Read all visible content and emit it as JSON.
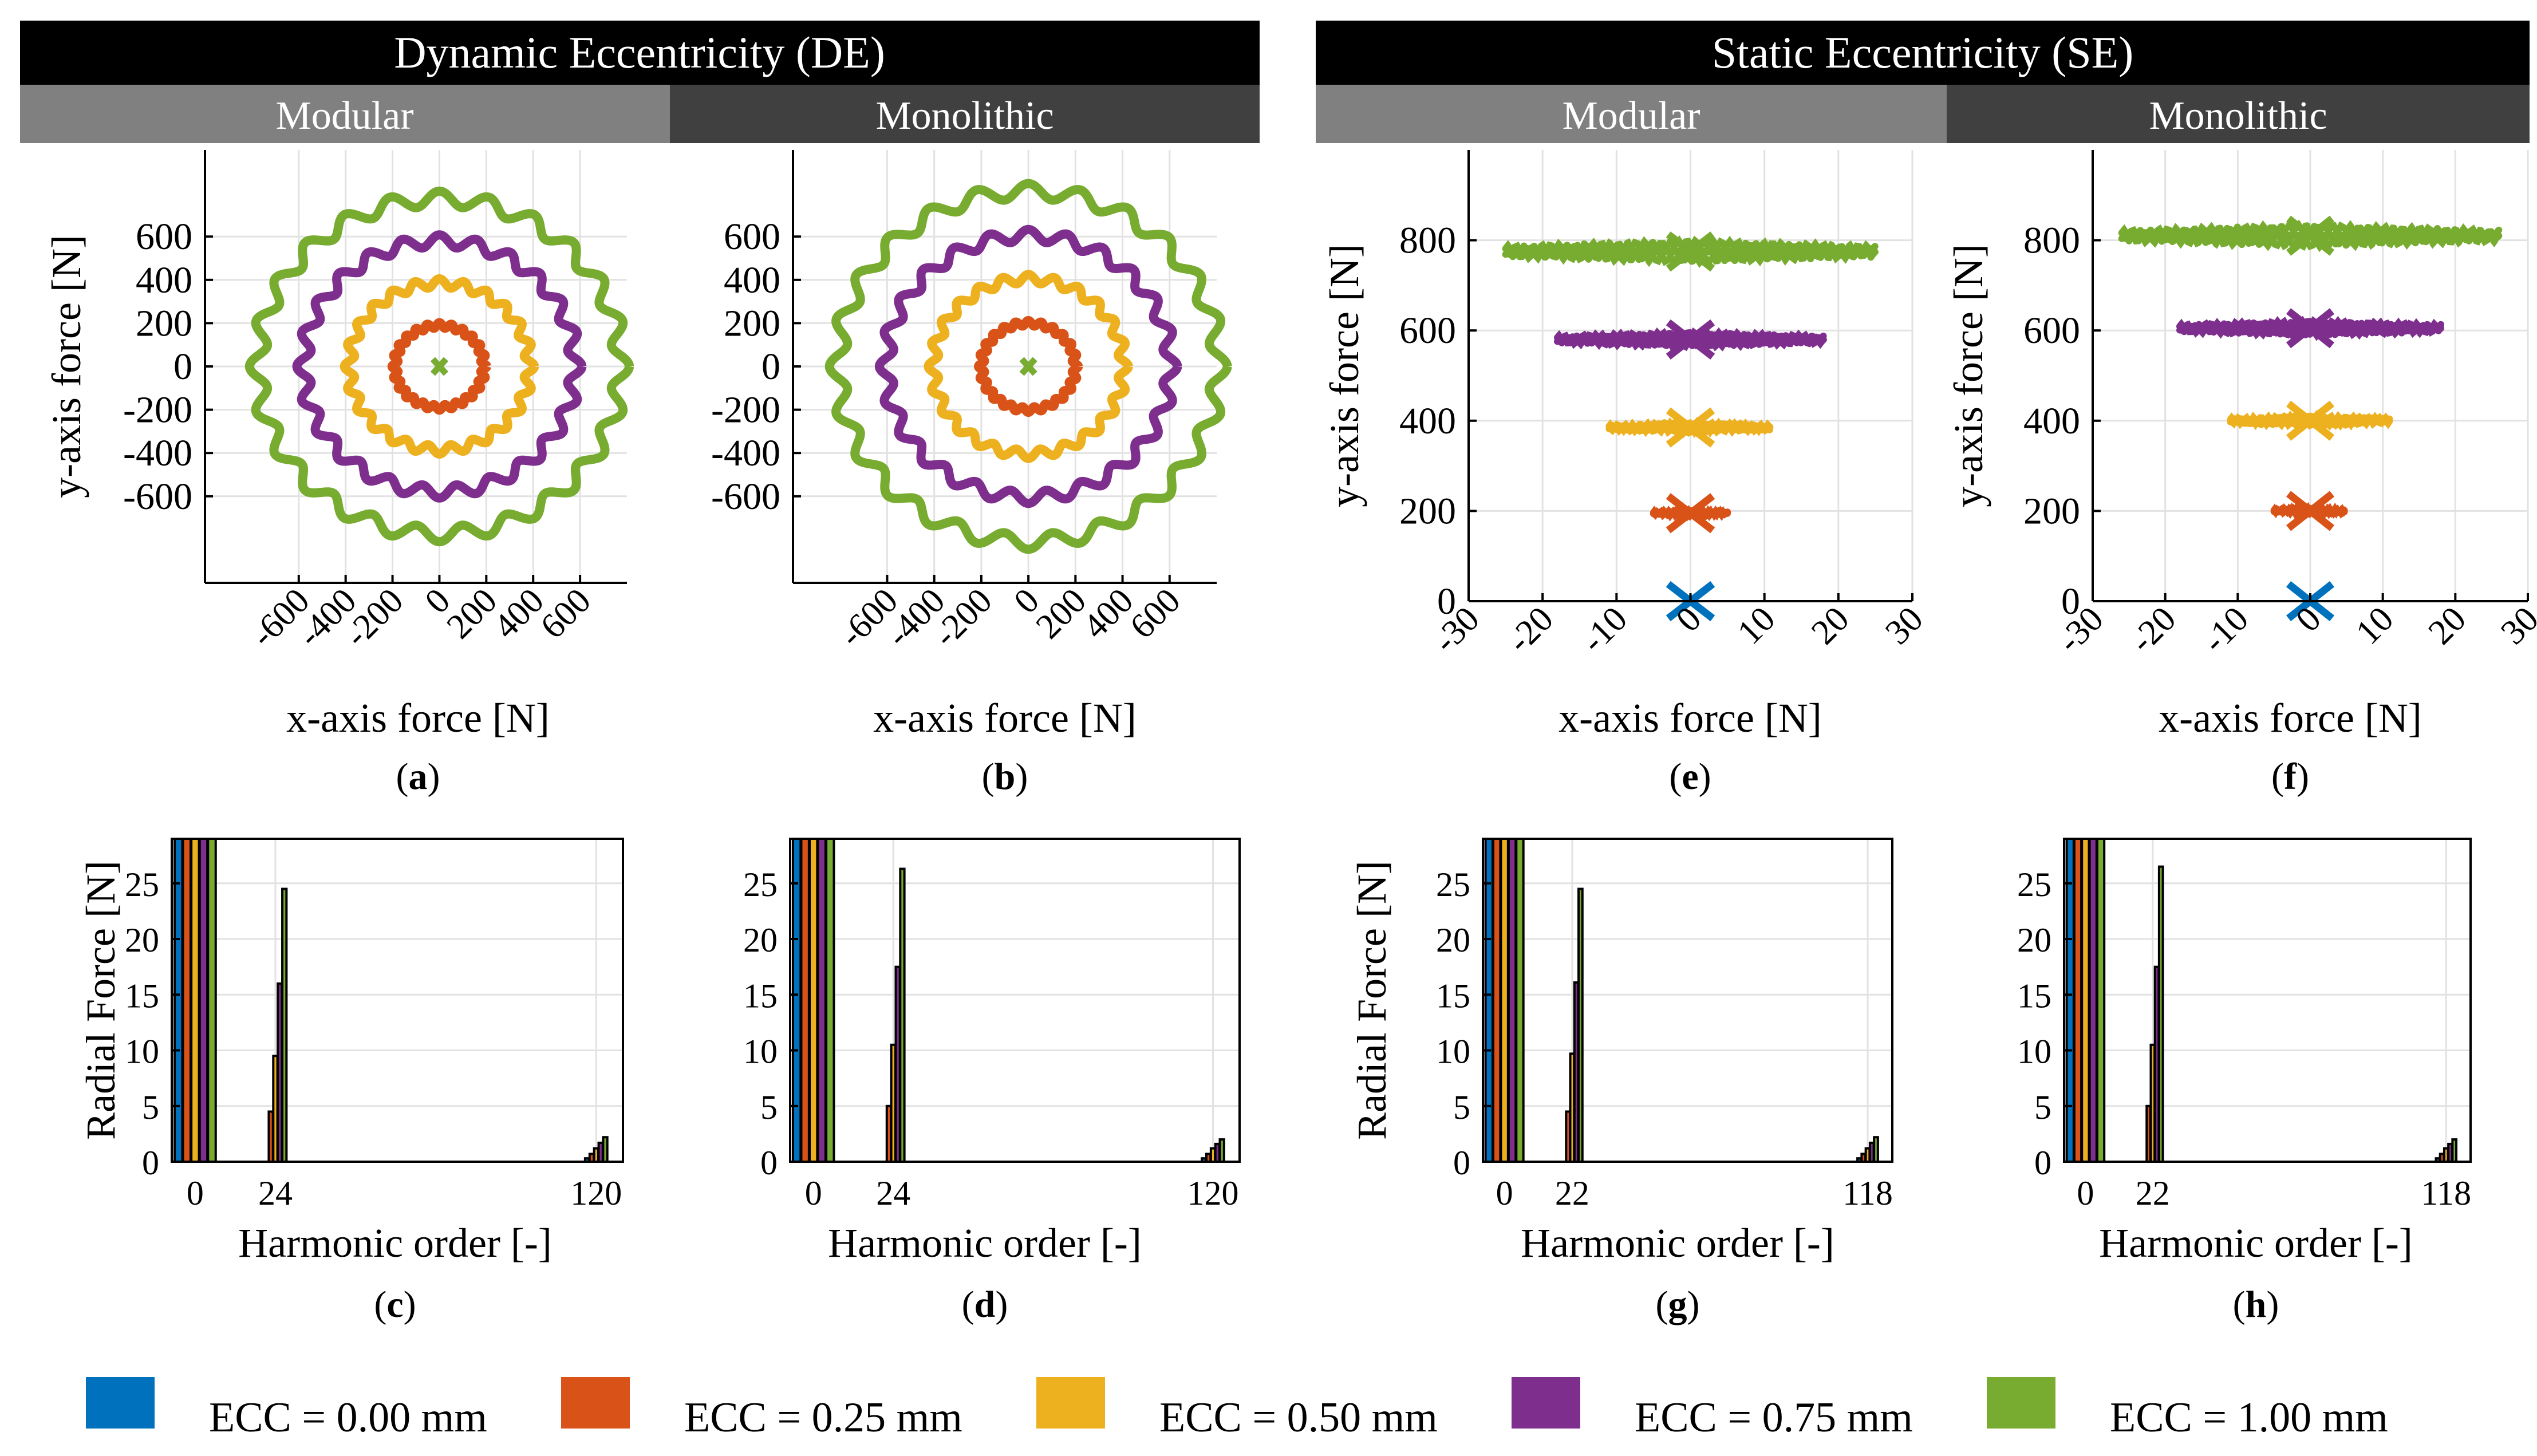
{
  "colors": {
    "ecc_000": "#0072BD",
    "ecc_025": "#D95319",
    "ecc_050": "#EDB120",
    "ecc_075": "#7E2F8E",
    "ecc_100": "#77AC30",
    "header_black": "#000000",
    "header_modular": "#808080",
    "header_monolithic": "#404040",
    "header_text": "#ffffff"
  },
  "headers": {
    "de": "Dynamic Eccentricity (DE)",
    "se": "Static Eccentricity (SE)",
    "de_modular": "Modular",
    "de_monolithic": "Monolithic",
    "se_modular": "Modular",
    "se_monolithic": "Monolithic"
  },
  "legend": [
    {
      "label": "ECC = 0.00 mm",
      "color": "#0072BD"
    },
    {
      "label": "ECC = 0.25 mm",
      "color": "#D95319"
    },
    {
      "label": "ECC = 0.50 mm",
      "color": "#EDB120"
    },
    {
      "label": "ECC = 0.75 mm",
      "color": "#7E2F8E"
    },
    {
      "label": "ECC = 1.00 mm",
      "color": "#77AC30"
    }
  ],
  "chart_data": [
    {
      "id": "a",
      "panel_label": "(a)",
      "type": "scatter",
      "description_kind": "orbit",
      "xlabel": "x-axis force [N]",
      "ylabel": "y-axis force [N]",
      "xlim": [
        -1000,
        800
      ],
      "ylim": [
        -1000,
        1000
      ],
      "xticks": [
        "-600",
        "-400",
        "-200",
        "0",
        "200",
        "400",
        "600"
      ],
      "yticks": [
        "600",
        "400",
        "200",
        "0",
        "-200",
        "-400",
        "-600"
      ],
      "xtick_values": [
        -600,
        -400,
        -200,
        0,
        200,
        400,
        600
      ],
      "ytick_values": [
        600,
        400,
        200,
        0,
        -200,
        -400,
        -600
      ],
      "series": [
        {
          "name": "ECC = 0.00 mm",
          "radius": 0,
          "ripple": 0
        },
        {
          "name": "ECC = 0.25 mm",
          "radius": 190,
          "ripple": 12
        },
        {
          "name": "ECC = 0.50 mm",
          "radius": 385,
          "ripple": 20
        },
        {
          "name": "ECC = 0.75 mm",
          "radius": 580,
          "ripple": 28
        },
        {
          "name": "ECC = 1.00 mm",
          "radius": 775,
          "ripple": 35
        }
      ],
      "ripple_order": 24
    },
    {
      "id": "b",
      "panel_label": "(b)",
      "type": "scatter",
      "description_kind": "orbit",
      "xlabel": "x-axis force [N]",
      "ylabel": "y-axis force [N]",
      "xlim": [
        -1000,
        800
      ],
      "ylim": [
        -1000,
        1000
      ],
      "xticks": [
        "-600",
        "-400",
        "-200",
        "0",
        "200",
        "400",
        "600"
      ],
      "yticks": [
        "600",
        "400",
        "200",
        "0",
        "-200",
        "-400",
        "-600"
      ],
      "xtick_values": [
        -600,
        -400,
        -200,
        0,
        200,
        400,
        600
      ],
      "ytick_values": [
        600,
        400,
        200,
        0,
        -200,
        -400,
        -600
      ],
      "series": [
        {
          "name": "ECC = 0.00 mm",
          "radius": 0,
          "ripple": 0
        },
        {
          "name": "ECC = 0.25 mm",
          "radius": 200,
          "ripple": 12
        },
        {
          "name": "ECC = 0.50 mm",
          "radius": 405,
          "ripple": 20
        },
        {
          "name": "ECC = 0.75 mm",
          "radius": 605,
          "ripple": 28
        },
        {
          "name": "ECC = 1.00 mm",
          "radius": 810,
          "ripple": 35
        }
      ],
      "ripple_order": 24
    },
    {
      "id": "e",
      "panel_label": "(e)",
      "type": "scatter",
      "description_kind": "band",
      "xlabel": "x-axis force [N]",
      "ylabel": "y-axis force [N]",
      "xlim": [
        -30,
        30
      ],
      "ylim": [
        0,
        1000
      ],
      "xticks": [
        "-30",
        "-20",
        "-10",
        "0",
        "10",
        "20",
        "30"
      ],
      "yticks": [
        "800",
        "600",
        "400",
        "200",
        "0"
      ],
      "xtick_values": [
        -30,
        -20,
        -10,
        0,
        10,
        20,
        30
      ],
      "ytick_values": [
        800,
        600,
        400,
        200,
        0
      ],
      "series": [
        {
          "name": "ECC = 0.00 mm",
          "center_y": 0,
          "half_width": 0,
          "spread_y": 0
        },
        {
          "name": "ECC = 0.25 mm",
          "center_y": 195,
          "half_width": 5,
          "spread_y": 4
        },
        {
          "name": "ECC = 0.50 mm",
          "center_y": 385,
          "half_width": 11,
          "spread_y": 8
        },
        {
          "name": "ECC = 0.75 mm",
          "center_y": 580,
          "half_width": 18,
          "spread_y": 12
        },
        {
          "name": "ECC = 1.00 mm",
          "center_y": 775,
          "half_width": 25,
          "spread_y": 18
        }
      ]
    },
    {
      "id": "f",
      "panel_label": "(f)",
      "type": "scatter",
      "description_kind": "band",
      "xlabel": "x-axis force [N]",
      "ylabel": "y-axis force [N]",
      "xlim": [
        -30,
        30
      ],
      "ylim": [
        0,
        1000
      ],
      "xticks": [
        "-30",
        "-20",
        "-10",
        "0",
        "10",
        "20",
        "30"
      ],
      "yticks": [
        "800",
        "600",
        "400",
        "200",
        "0"
      ],
      "xtick_values": [
        -30,
        -20,
        -10,
        0,
        10,
        20,
        30
      ],
      "ytick_values": [
        800,
        600,
        400,
        200,
        0
      ],
      "series": [
        {
          "name": "ECC = 0.00 mm",
          "center_y": 0,
          "half_width": 0,
          "spread_y": 0
        },
        {
          "name": "ECC = 0.25 mm",
          "center_y": 200,
          "half_width": 5,
          "spread_y": 4
        },
        {
          "name": "ECC = 0.50 mm",
          "center_y": 400,
          "half_width": 11,
          "spread_y": 8
        },
        {
          "name": "ECC = 0.75 mm",
          "center_y": 605,
          "half_width": 18,
          "spread_y": 12
        },
        {
          "name": "ECC = 1.00 mm",
          "center_y": 810,
          "half_width": 26,
          "spread_y": 18
        }
      ]
    },
    {
      "id": "c",
      "panel_label": "(c)",
      "type": "bar",
      "xlabel": "Harmonic order [-]",
      "ylabel": "Radial Force [N]",
      "ylim": [
        0,
        29
      ],
      "xlim": [
        -7,
        128
      ],
      "yticks": [
        "25",
        "20",
        "15",
        "10",
        "5",
        "0"
      ],
      "ytick_values": [
        25,
        20,
        15,
        10,
        5,
        0
      ],
      "xticks": [
        "0",
        "24",
        "120"
      ],
      "xtick_values": [
        0,
        24,
        120
      ],
      "groups": [
        {
          "harmonic": 0,
          "values": [
            29,
            29,
            29,
            29,
            29
          ]
        },
        {
          "harmonic": 24,
          "values": [
            0,
            4.5,
            9.5,
            16,
            24.5
          ]
        },
        {
          "harmonic": 120,
          "values": [
            0.3,
            0.7,
            1.2,
            1.7,
            2.2
          ]
        }
      ]
    },
    {
      "id": "d",
      "panel_label": "(d)",
      "type": "bar",
      "xlabel": "Harmonic order [-]",
      "ylabel": "",
      "ylim": [
        0,
        29
      ],
      "xlim": [
        -7,
        128
      ],
      "yticks": [
        "25",
        "20",
        "15",
        "10",
        "5",
        "0"
      ],
      "ytick_values": [
        25,
        20,
        15,
        10,
        5,
        0
      ],
      "xticks": [
        "0",
        "24",
        "120"
      ],
      "xtick_values": [
        0,
        24,
        120
      ],
      "groups": [
        {
          "harmonic": 0,
          "values": [
            29,
            29,
            29,
            29,
            29
          ]
        },
        {
          "harmonic": 24,
          "values": [
            0,
            5,
            10.5,
            17.5,
            26.3
          ]
        },
        {
          "harmonic": 120,
          "values": [
            0.3,
            0.7,
            1.2,
            1.6,
            2.0
          ]
        }
      ]
    },
    {
      "id": "g",
      "panel_label": "(g)",
      "type": "bar",
      "xlabel": "Harmonic order [-]",
      "ylabel": "Radial Force [N]",
      "ylim": [
        0,
        29
      ],
      "xlim": [
        -7,
        126
      ],
      "yticks": [
        "25",
        "20",
        "15",
        "10",
        "5",
        "0"
      ],
      "ytick_values": [
        25,
        20,
        15,
        10,
        5,
        0
      ],
      "xticks": [
        "0",
        "22",
        "118"
      ],
      "xtick_values": [
        0,
        22,
        118
      ],
      "groups": [
        {
          "harmonic": 0,
          "values": [
            29,
            29,
            29,
            29,
            29
          ]
        },
        {
          "harmonic": 22,
          "values": [
            0,
            4.5,
            9.7,
            16.1,
            24.5
          ]
        },
        {
          "harmonic": 118,
          "values": [
            0.3,
            0.7,
            1.2,
            1.7,
            2.2
          ]
        }
      ]
    },
    {
      "id": "h",
      "panel_label": "(h)",
      "type": "bar",
      "xlabel": "Harmonic order [-]",
      "ylabel": "",
      "ylim": [
        0,
        29
      ],
      "xlim": [
        -7,
        126
      ],
      "yticks": [
        "25",
        "20",
        "15",
        "10",
        "5",
        "0"
      ],
      "ytick_values": [
        25,
        20,
        15,
        10,
        5,
        0
      ],
      "xticks": [
        "0",
        "22",
        "118"
      ],
      "xtick_values": [
        0,
        22,
        118
      ],
      "groups": [
        {
          "harmonic": 0,
          "values": [
            29,
            29,
            29,
            29,
            29
          ]
        },
        {
          "harmonic": 22,
          "values": [
            0,
            5,
            10.5,
            17.5,
            26.5
          ]
        },
        {
          "harmonic": 118,
          "values": [
            0.3,
            0.7,
            1.2,
            1.6,
            2.0
          ]
        }
      ]
    }
  ]
}
